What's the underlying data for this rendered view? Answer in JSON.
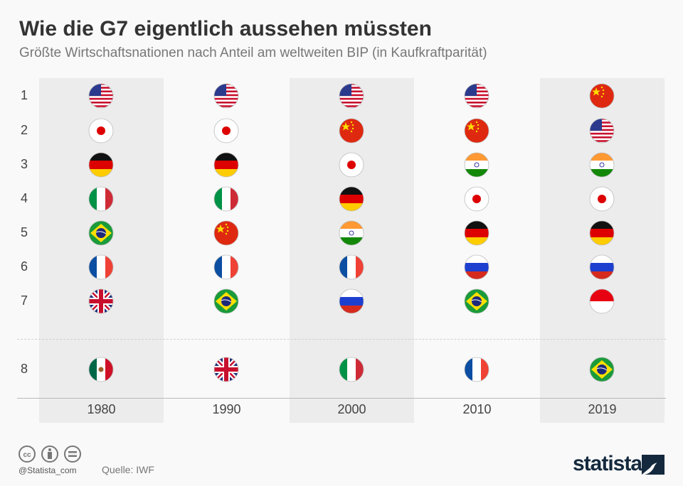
{
  "title": "Wie die G7 eigentlich aussehen müssten",
  "subtitle": "Größte Wirtschaftsnationen nach Anteil am weltweiten BIP (in Kaufkraftparität)",
  "chart_data": {
    "type": "table",
    "ranks": [
      "1",
      "2",
      "3",
      "4",
      "5",
      "6",
      "7",
      "8"
    ],
    "columns": [
      {
        "year": "1980",
        "countries": [
          "usa",
          "japan",
          "germany",
          "italy",
          "brazil",
          "france",
          "uk",
          "mexico"
        ]
      },
      {
        "year": "1990",
        "countries": [
          "usa",
          "japan",
          "germany",
          "italy",
          "china",
          "france",
          "brazil",
          "uk"
        ]
      },
      {
        "year": "2000",
        "countries": [
          "usa",
          "china",
          "japan",
          "germany",
          "india",
          "france",
          "russia",
          "italy"
        ]
      },
      {
        "year": "2010",
        "countries": [
          "usa",
          "china",
          "india",
          "japan",
          "germany",
          "russia",
          "brazil",
          "france"
        ]
      },
      {
        "year": "2019",
        "countries": [
          "china",
          "usa",
          "india",
          "japan",
          "germany",
          "russia",
          "indonesia",
          "brazil"
        ]
      }
    ]
  },
  "footer": {
    "handle": "@Statista_com",
    "source": "Quelle: IWF",
    "logo": "statista"
  }
}
